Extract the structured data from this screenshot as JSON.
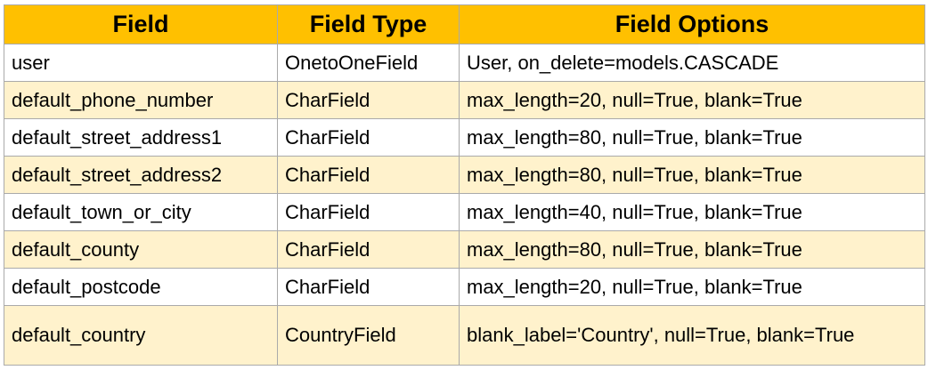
{
  "table": {
    "headers": [
      "Field",
      "Field Type",
      "Field Options"
    ],
    "rows": [
      [
        "user",
        "OnetoOneField",
        "User, on_delete=models.CASCADE"
      ],
      [
        "default_phone_number",
        "CharField",
        "max_length=20, null=True, blank=True"
      ],
      [
        "default_street_address1",
        "CharField",
        "max_length=80, null=True, blank=True"
      ],
      [
        "default_street_address2",
        "CharField",
        "max_length=80, null=True, blank=True"
      ],
      [
        "default_town_or_city",
        "CharField",
        "max_length=40, null=True, blank=True"
      ],
      [
        "default_county",
        "CharField",
        "max_length=80, null=True, blank=True"
      ],
      [
        "default_postcode",
        "CharField",
        "max_length=20, null=True, blank=True"
      ],
      [
        "default_country",
        "CountryField",
        "blank_label='Country', null=True, blank=True"
      ]
    ]
  },
  "colors": {
    "header_bg": "#ffc000",
    "stripe_bg": "#fff2cc",
    "plain_bg": "#ffffff",
    "border": "#aaaaaa"
  }
}
